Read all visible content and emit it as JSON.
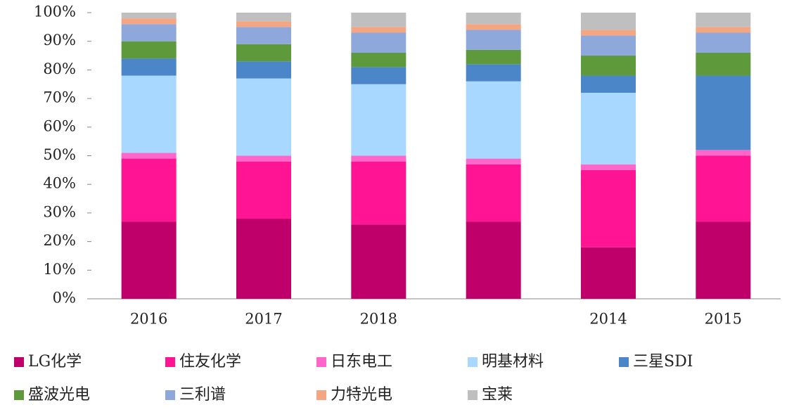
{
  "chart_data": {
    "type": "bar",
    "stacked": true,
    "categories": [
      "2016",
      "2017",
      "2018",
      null,
      "2014",
      "2015"
    ],
    "series": [
      {
        "name": "LG化学",
        "color": "#c0006a",
        "values": [
          27,
          28,
          26,
          27,
          18,
          27
        ]
      },
      {
        "name": "住友化学",
        "color": "#ff1493",
        "values": [
          22,
          20,
          22,
          20,
          27,
          23
        ]
      },
      {
        "name": "日东电工",
        "color": "#ff66cc",
        "values": [
          2,
          2,
          2,
          2,
          2,
          2
        ]
      },
      {
        "name": "明基材料",
        "color": "#a8d8ff",
        "values": [
          27,
          27,
          25,
          27,
          25,
          0
        ]
      },
      {
        "name": "三星SDI",
        "color": "#4a86c8",
        "values": [
          6,
          6,
          6,
          6,
          6,
          26
        ]
      },
      {
        "name": "盛波光电",
        "color": "#5e9a3c",
        "values": [
          6,
          6,
          5,
          5,
          7,
          8
        ]
      },
      {
        "name": "三利谱",
        "color": "#8fa8dc",
        "values": [
          6,
          6,
          7,
          7,
          7,
          7
        ]
      },
      {
        "name": "力特光电",
        "color": "#f4a582",
        "values": [
          2,
          2,
          2,
          2,
          2,
          2
        ]
      },
      {
        "name": "宝莱",
        "color": "#bfbfbf",
        "values": [
          2,
          3,
          5,
          4,
          6,
          5
        ]
      }
    ],
    "ylim": [
      0,
      100
    ],
    "yticks": [
      {
        "value": 0,
        "label": "0%"
      },
      {
        "value": 10,
        "label": "10%"
      },
      {
        "value": 20,
        "label": "20%"
      },
      {
        "value": 30,
        "label": "30%"
      },
      {
        "value": 40,
        "label": "40%"
      },
      {
        "value": 50,
        "label": "50%"
      },
      {
        "value": 60,
        "label": "60%"
      },
      {
        "value": 70,
        "label": "70%"
      },
      {
        "value": 80,
        "label": "80%"
      },
      {
        "value": 90,
        "label": "90%"
      },
      {
        "value": 100,
        "label": "100%"
      }
    ],
    "legend": "bottom"
  }
}
